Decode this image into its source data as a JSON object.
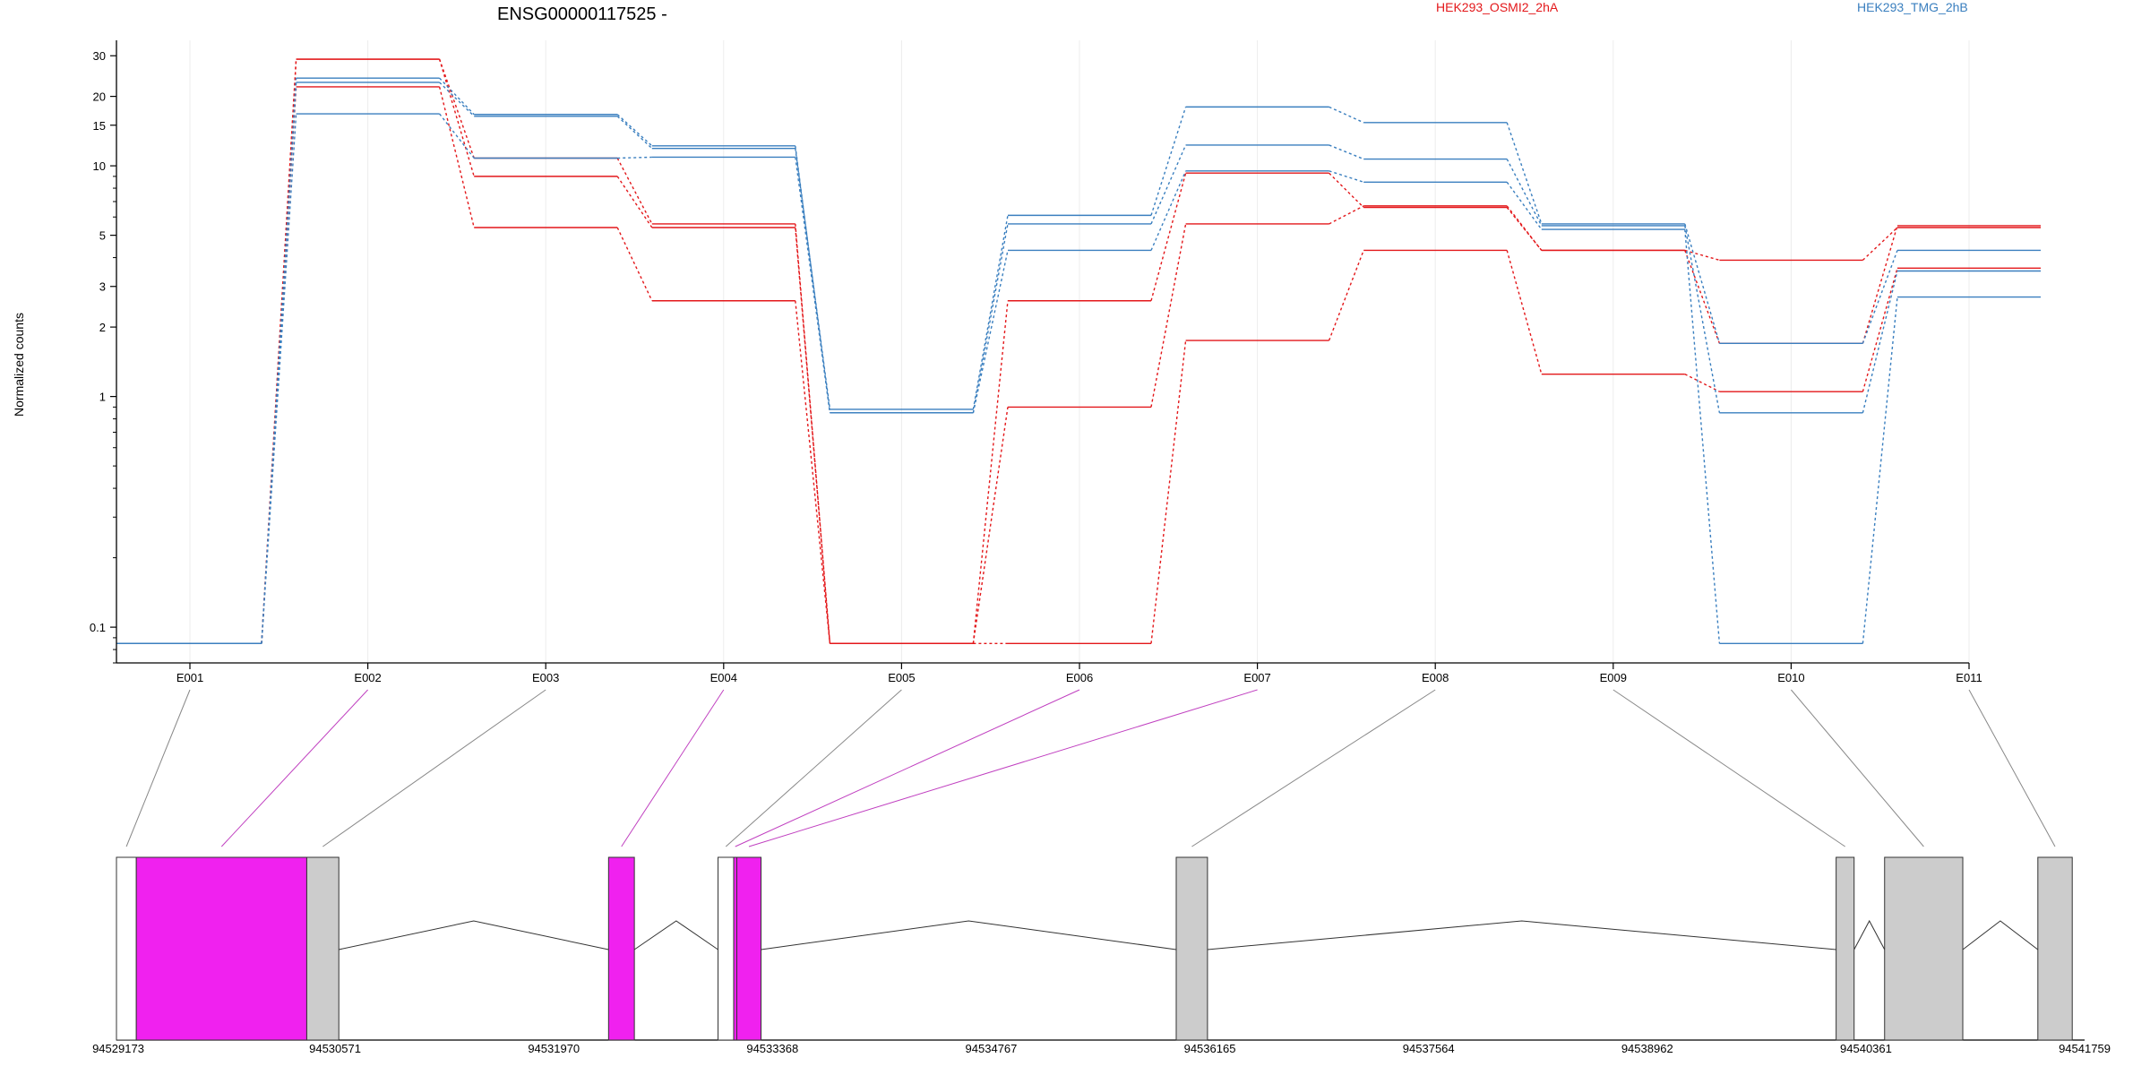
{
  "chart_data": {
    "type": "line",
    "title": "ENSG00000117525 -",
    "ylabel": "Normalized counts",
    "xlabel": "",
    "y_scale": "log",
    "ylim": [
      0.07,
      35
    ],
    "y_ticks": [
      {
        "value": 0.1,
        "label": "0.1"
      },
      {
        "value": 1,
        "label": "1"
      },
      {
        "value": 2,
        "label": "2"
      },
      {
        "value": 3,
        "label": "3"
      },
      {
        "value": 5,
        "label": "5"
      },
      {
        "value": 10,
        "label": "10"
      },
      {
        "value": 15,
        "label": "15"
      },
      {
        "value": 20,
        "label": "20"
      },
      {
        "value": 30,
        "label": "30"
      }
    ],
    "categories": [
      "E001",
      "E002",
      "E003",
      "E004",
      "E005",
      "E006",
      "E007",
      "E008",
      "E009",
      "E010",
      "E011"
    ],
    "grid": "vertical",
    "legend": [
      {
        "label": "HEK293_OSMI2_2hA",
        "color": "#e3171a",
        "position": "top-center"
      },
      {
        "label": "HEK293_TMG_2hB",
        "color": "#3a7fbf",
        "position": "top-right"
      }
    ],
    "series": [
      {
        "group": "HEK293_OSMI2_2hA",
        "color": "#e3171a",
        "values": [
          0.085,
          29,
          10.8,
          5.6,
          0.085,
          2.6,
          9.3,
          6.6,
          4.3,
          1.7,
          5.5
        ]
      },
      {
        "group": "HEK293_OSMI2_2hA",
        "color": "#e3171a",
        "values": [
          0.085,
          29,
          9,
          5.4,
          0.085,
          0.9,
          5.6,
          6.7,
          4.3,
          3.9,
          5.4
        ]
      },
      {
        "group": "HEK293_OSMI2_2hA",
        "color": "#e3171a",
        "values": [
          0.085,
          22,
          5.4,
          2.6,
          0.085,
          0.085,
          1.75,
          4.3,
          1.25,
          1.05,
          3.6
        ]
      },
      {
        "group": "HEK293_TMG_2hB",
        "color": "#3a7fbf",
        "values": [
          0.085,
          23,
          16.4,
          11.9,
          0.88,
          6.1,
          18,
          15.4,
          5.6,
          1.7,
          4.3
        ]
      },
      {
        "group": "HEK293_TMG_2hB",
        "color": "#3a7fbf",
        "values": [
          0.085,
          24,
          16.7,
          12.2,
          0.85,
          5.6,
          12.3,
          10.7,
          5.5,
          0.85,
          3.5
        ]
      },
      {
        "group": "HEK293_TMG_2hB",
        "color": "#3a7fbf",
        "values": [
          0.085,
          16.8,
          10.8,
          10.9,
          0.85,
          4.3,
          9.5,
          8.5,
          5.3,
          0.085,
          2.7
        ]
      }
    ],
    "gene_model": {
      "coordinate_labels": [
        "94529173",
        "94530571",
        "94531970",
        "94533368",
        "94534767",
        "94536165",
        "94537564",
        "94538962",
        "94540361",
        "94541759"
      ],
      "highlight_color": "#f021ef",
      "exon_color": "#cccccc",
      "utr_color": "#ffffff",
      "exons": [
        {
          "id": "E001",
          "start": 94529173,
          "end": 94529300,
          "kind": "utr"
        },
        {
          "id": "E002",
          "start": 94529300,
          "end": 94530390,
          "kind": "highlight"
        },
        {
          "id": "E003",
          "start": 94530390,
          "end": 94530595,
          "kind": "normal"
        },
        {
          "id": "E004",
          "start": 94532320,
          "end": 94532485,
          "kind": "highlight"
        },
        {
          "id": "E005",
          "start": 94533020,
          "end": 94533120,
          "kind": "utr"
        },
        {
          "id": "E006",
          "start": 94533120,
          "end": 94533140,
          "kind": "highlight"
        },
        {
          "id": "E007",
          "start": 94533140,
          "end": 94533295,
          "kind": "highlight"
        },
        {
          "id": "E008",
          "start": 94535950,
          "end": 94536150,
          "kind": "normal"
        },
        {
          "id": "E009",
          "start": 94540170,
          "end": 94540285,
          "kind": "normal"
        },
        {
          "id": "E010",
          "start": 94540480,
          "end": 94540980,
          "kind": "normal"
        },
        {
          "id": "E011",
          "start": 94541460,
          "end": 94541680,
          "kind": "normal"
        }
      ],
      "introns": [
        {
          "from": 94530595,
          "to": 94532320
        },
        {
          "from": 94532485,
          "to": 94533020
        },
        {
          "from": 94533295,
          "to": 94535950
        },
        {
          "from": 94536150,
          "to": 94540170
        },
        {
          "from": 94540285,
          "to": 94540480
        },
        {
          "from": 94540980,
          "to": 94541460
        }
      ]
    }
  }
}
